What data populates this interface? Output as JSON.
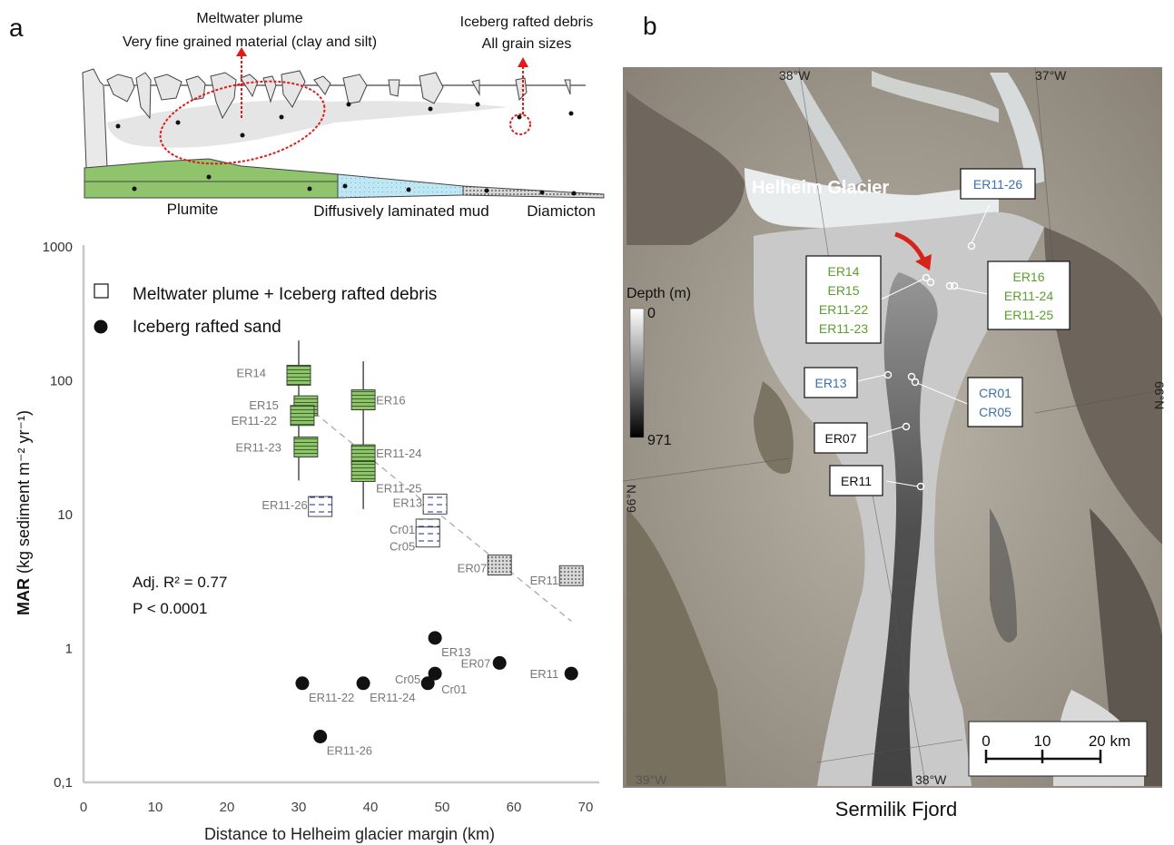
{
  "panel_a": {
    "letter": "a",
    "schematic": {
      "plume_line1": "Meltwater plume",
      "plume_line2": "Very fine grained material (clay and silt)",
      "debris_line1": "Iceberg rafted debris",
      "debris_line2": "All grain sizes",
      "zone_plumite": "Plumite",
      "zone_mud": "Diffusively laminated mud",
      "zone_diamicton": "Diamicton",
      "colors": {
        "plumite": "#8fc46c",
        "mud": "#bfe6f3",
        "diamicton": "#d6d6d6",
        "plume": "#e5e5e5",
        "arrow": "#e21a1a"
      }
    },
    "legend": {
      "square_label": "Meltwater plume + Iceberg rafted debris",
      "dot_label": "Iceberg rafted sand"
    },
    "stats": {
      "r2_text": "Adj. R² = 0.77",
      "p_text": "P < 0.0001"
    }
  },
  "panel_b": {
    "letter": "b",
    "caption": "Sermilik Fjord",
    "glacier_label": "Helheim Glacier",
    "lon_top_left": "38°W",
    "lon_top_right": "37°W",
    "lon_bottom": "38°W",
    "lon_bottom_left": "39°W",
    "lat_left": "66°N",
    "lat_right": "66°N",
    "depth": {
      "title": "Depth (m)",
      "min": "0",
      "max": "971"
    },
    "scale": {
      "ticks": [
        "0",
        "10",
        "20 km"
      ]
    },
    "label_boxes": [
      {
        "lines": [
          "ER11-26"
        ],
        "color": "#3a6fb0"
      },
      {
        "lines": [
          "ER14",
          "ER15",
          "ER11-22",
          "ER11-23"
        ],
        "color": "#5aa02c"
      },
      {
        "lines": [
          "ER16",
          "ER11-24",
          "ER11-25"
        ],
        "color": "#5aa02c"
      },
      {
        "lines": [
          "ER13"
        ],
        "color": "#3a6fb0"
      },
      {
        "lines": [
          "CR01",
          "CR05"
        ],
        "color": "#3a6fb0"
      },
      {
        "lines": [
          "ER07"
        ],
        "color": "#111111"
      },
      {
        "lines": [
          "ER11"
        ],
        "color": "#111111"
      }
    ]
  },
  "chart_data": {
    "type": "scatter",
    "title": "",
    "xlabel": "Distance to Helheim glacier margin (km)",
    "ylabel_bold": "MAR",
    "ylabel_rest": "(kg sediment m⁻² yr⁻¹)",
    "xlim": [
      0,
      70
    ],
    "ylim": [
      0.1,
      1000
    ],
    "y_scale": "log",
    "x_ticks": [
      "0",
      "10",
      "20",
      "30",
      "40",
      "50",
      "60",
      "70"
    ],
    "y_ticks": [
      {
        "value": 1000,
        "label": "1000"
      },
      {
        "value": 100,
        "label": "100"
      },
      {
        "value": 10,
        "label": "10"
      },
      {
        "value": 1,
        "label": "1"
      },
      {
        "value": 0.1,
        "label": "0,1"
      }
    ],
    "series": [
      {
        "name": "Meltwater plume + Iceberg rafted debris",
        "points": [
          {
            "label": "ER14",
            "x": 30,
            "y": 110,
            "facies": "plumite",
            "whisker": [
              18,
              200
            ]
          },
          {
            "label": "ER15",
            "x": 31,
            "y": 65,
            "facies": "plumite"
          },
          {
            "label": "ER11-22",
            "x": 30.5,
            "y": 55,
            "facies": "plumite"
          },
          {
            "label": "ER11-23",
            "x": 31,
            "y": 32,
            "facies": "plumite"
          },
          {
            "label": "ER16",
            "x": 39,
            "y": 72,
            "facies": "plumite",
            "whisker": [
              11,
              140
            ]
          },
          {
            "label": "ER11-24",
            "x": 39,
            "y": 28,
            "facies": "plumite"
          },
          {
            "label": "ER11-25",
            "x": 39,
            "y": 21,
            "facies": "plumite"
          },
          {
            "label": "ER11-26",
            "x": 33,
            "y": 11.5,
            "facies": "mud"
          },
          {
            "label": "ER13",
            "x": 49,
            "y": 12,
            "facies": "mud"
          },
          {
            "label": "Cr01",
            "x": 48,
            "y": 7.8,
            "facies": "mud"
          },
          {
            "label": "Cr05",
            "x": 48,
            "y": 6.8,
            "facies": "mud"
          },
          {
            "label": "ER07",
            "x": 58,
            "y": 4.2,
            "facies": "diamicton"
          },
          {
            "label": "ER11",
            "x": 68,
            "y": 3.5,
            "facies": "diamicton"
          }
        ]
      },
      {
        "name": "Iceberg rafted sand",
        "points": [
          {
            "label": "ER11-22",
            "x": 30.5,
            "y": 0.55
          },
          {
            "label": "ER11-26",
            "x": 33,
            "y": 0.22
          },
          {
            "label": "ER11-24",
            "x": 39,
            "y": 0.55
          },
          {
            "label": "ER13",
            "x": 49,
            "y": 1.2
          },
          {
            "label": "Cr05",
            "x": 48,
            "y": 0.55
          },
          {
            "label": "Cr01",
            "x": 49,
            "y": 0.65
          },
          {
            "label": "ER07",
            "x": 58,
            "y": 0.78
          },
          {
            "label": "ER11",
            "x": 68,
            "y": 0.65
          }
        ]
      }
    ],
    "trendline": {
      "x": [
        31,
        68
      ],
      "y": [
        65,
        1.6
      ],
      "style": "dashed"
    }
  }
}
